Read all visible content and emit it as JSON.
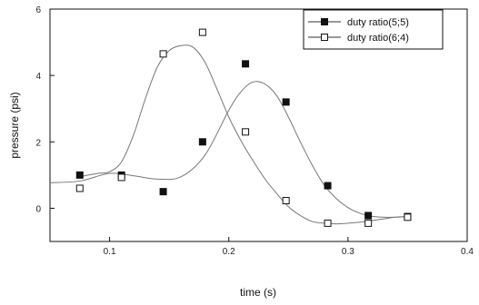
{
  "chart_data": {
    "type": "scatter",
    "xlabel": "time (s)",
    "ylabel": "pressure (psi)",
    "xlim": [
      0.05,
      0.4
    ],
    "ylim": [
      -1,
      6
    ],
    "x_ticks": [
      {
        "value": 0.1,
        "label": "0.1"
      },
      {
        "value": 0.2,
        "label": "0.2"
      },
      {
        "value": 0.3,
        "label": "0.3"
      },
      {
        "value": 0.4,
        "label": "0.4"
      }
    ],
    "y_ticks": [
      {
        "value": 0,
        "label": "0"
      },
      {
        "value": 2,
        "label": "2"
      },
      {
        "value": 4,
        "label": "4"
      },
      {
        "value": 6,
        "label": "6"
      }
    ],
    "legend_position": "top-right",
    "series": [
      {
        "name": "duty ratio(5;5)",
        "marker": "filled-square",
        "color": "#111111",
        "x": [
          0.075,
          0.11,
          0.145,
          0.178,
          0.214,
          0.248,
          0.283,
          0.317,
          0.35
        ],
        "y": [
          1.0,
          1.0,
          0.5,
          2.0,
          4.35,
          3.2,
          0.68,
          -0.22,
          -0.25
        ],
        "fit": {
          "x": [
            0.05,
            0.075,
            0.1,
            0.12,
            0.14,
            0.16,
            0.18,
            0.2,
            0.21,
            0.22,
            0.23,
            0.24,
            0.25,
            0.26,
            0.27,
            0.28,
            0.29,
            0.3,
            0.31,
            0.32,
            0.33,
            0.34,
            0.35
          ],
          "y": [
            0.77,
            0.82,
            1.05,
            0.98,
            0.88,
            0.95,
            1.6,
            2.95,
            3.5,
            3.8,
            3.75,
            3.4,
            2.75,
            2.0,
            1.3,
            0.7,
            0.3,
            0.02,
            -0.15,
            -0.24,
            -0.27,
            -0.27,
            -0.25
          ]
        }
      },
      {
        "name": "duty ratio(6;4)",
        "marker": "open-square",
        "color": "#111111",
        "x": [
          0.075,
          0.11,
          0.145,
          0.178,
          0.214,
          0.248,
          0.283,
          0.317,
          0.35
        ],
        "y": [
          0.6,
          0.93,
          4.65,
          5.3,
          2.3,
          0.23,
          -0.45,
          -0.45,
          -0.27
        ],
        "fit": {
          "x": [
            0.075,
            0.09,
            0.1,
            0.11,
            0.12,
            0.13,
            0.14,
            0.15,
            0.16,
            0.17,
            0.18,
            0.19,
            0.2,
            0.21,
            0.22,
            0.23,
            0.24,
            0.25,
            0.26,
            0.27,
            0.28,
            0.29,
            0.3,
            0.31,
            0.32,
            0.33,
            0.34,
            0.35
          ],
          "y": [
            0.95,
            1.05,
            1.1,
            1.4,
            2.2,
            3.3,
            4.25,
            4.75,
            4.9,
            4.85,
            4.4,
            3.6,
            2.75,
            2.05,
            1.45,
            0.9,
            0.45,
            0.05,
            -0.22,
            -0.4,
            -0.45,
            -0.47,
            -0.45,
            -0.42,
            -0.37,
            -0.32,
            -0.27,
            -0.25
          ]
        }
      }
    ]
  }
}
